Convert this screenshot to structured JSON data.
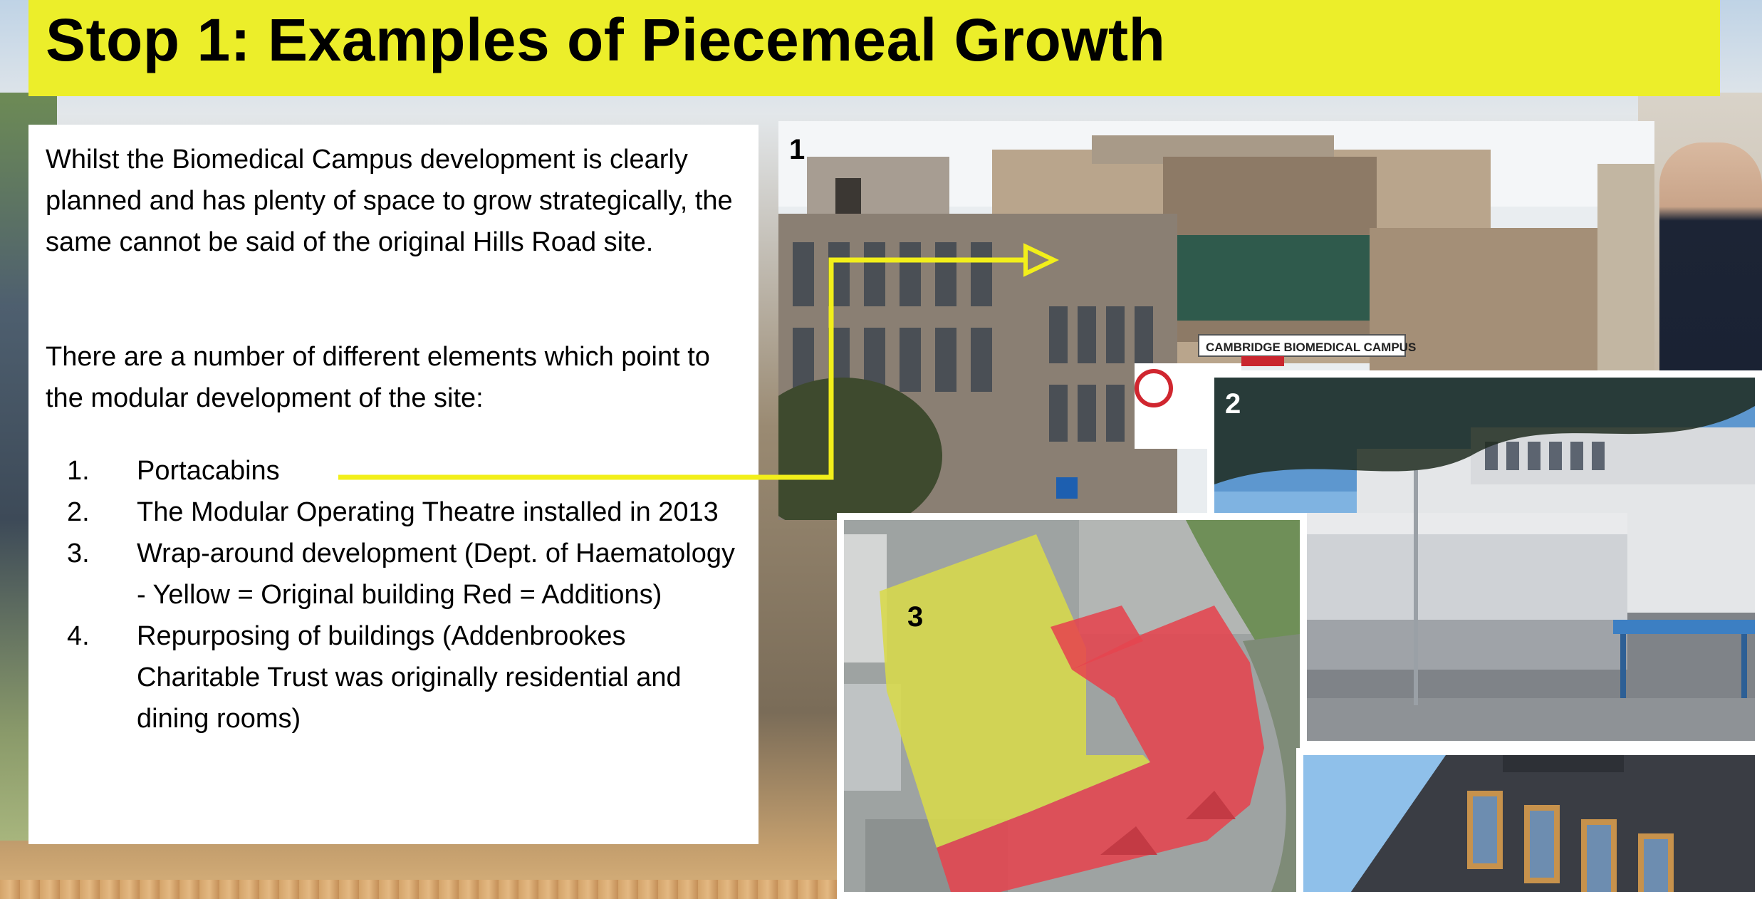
{
  "title": "Stop 1: Examples of Piecemeal Growth",
  "intro": "Whilst the Biomedical Campus development is clearly planned and has plenty of space to grow strategically, the same cannot be said of the original Hills Road site.",
  "lead_in": "There are a number of different elements which point to the modular development of the site:",
  "items": [
    {
      "number": "1.",
      "text": "Portacabins"
    },
    {
      "number": "2.",
      "text": "The Modular Operating Theatre installed in 2013"
    },
    {
      "number": "3.",
      "text": "Wrap-around development (Dept. of Haematology - Yellow = Original building Red = Additions)"
    },
    {
      "number": "4.",
      "text": "Repurposing of buildings (Addenbrookes Charitable Trust was originally residential and dining rooms)"
    }
  ],
  "photos": [
    {
      "number": "1",
      "sign": "CAMBRIDGE BIOMEDICAL CAMPUS"
    },
    {
      "number": "2"
    },
    {
      "number": "3"
    },
    {
      "number": ""
    }
  ],
  "colors": {
    "title_bar": "#ecee2a",
    "arrow": "#f2ef1a",
    "original_building": "#d8d94a",
    "additions": "#e5444f"
  }
}
